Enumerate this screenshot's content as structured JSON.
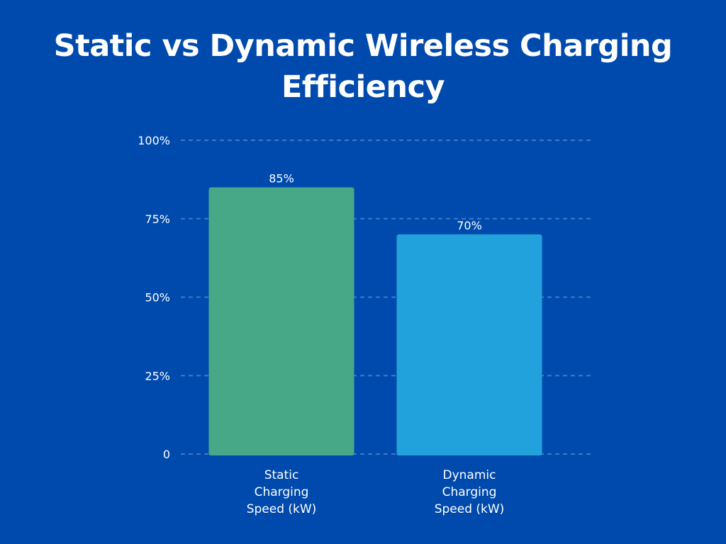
{
  "colors": {
    "background": "#004aad",
    "grid": "#3f78c8",
    "static_bar": "#46a887",
    "dynamic_bar": "#22a2dc",
    "text": "#ffffff"
  },
  "chart_data": {
    "type": "bar",
    "title": "Static vs Dynamic Wireless Charging Efficiency",
    "xlabel": "",
    "ylabel": "",
    "categories": [
      [
        "Static",
        "Charging",
        "Speed (kW)"
      ],
      [
        "Dynamic",
        "Charging",
        "Speed (kW)"
      ]
    ],
    "values": [
      85,
      70
    ],
    "data_labels": [
      "85%",
      "70%"
    ],
    "ylim": [
      0,
      100
    ],
    "y_ticks": [
      0,
      25,
      50,
      75,
      100
    ],
    "y_tick_labels": [
      "0",
      "25%",
      "50%",
      "75%",
      "100%"
    ],
    "grid": true,
    "legend": "none"
  }
}
